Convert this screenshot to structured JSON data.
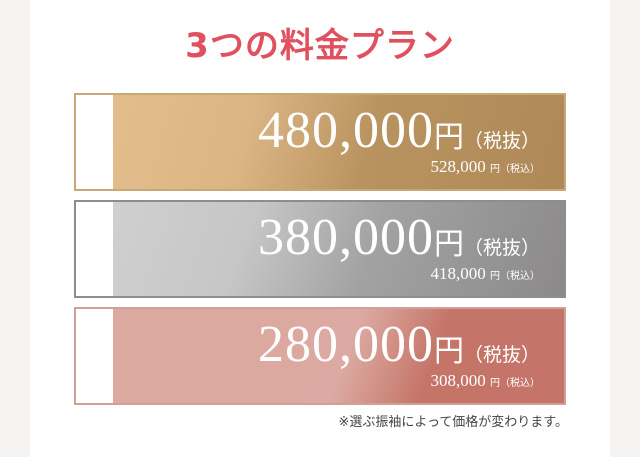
{
  "title": "3つの料金プラン",
  "plans": [
    {
      "price": "480,000",
      "unit": "円",
      "tax_label": "（税抜）",
      "price_incl": "528,000",
      "unit_small": "円",
      "tax_incl_label": "（税込）",
      "colors": [
        "#e5c090",
        "#b08a5a"
      ]
    },
    {
      "price": "380,000",
      "unit": "円",
      "tax_label": "（税抜）",
      "price_incl": "418,000",
      "unit_small": "円",
      "tax_incl_label": "（税込）",
      "colors": [
        "#cfcfcf",
        "#8c8a8b"
      ]
    },
    {
      "price": "280,000",
      "unit": "円",
      "tax_label": "（税抜）",
      "price_incl": "308,000",
      "unit_small": "円",
      "tax_incl_label": "（税込）",
      "colors": [
        "#dca8a0",
        "#c47468"
      ]
    }
  ],
  "note": "※選ぶ振袖によって価格が変わります。"
}
